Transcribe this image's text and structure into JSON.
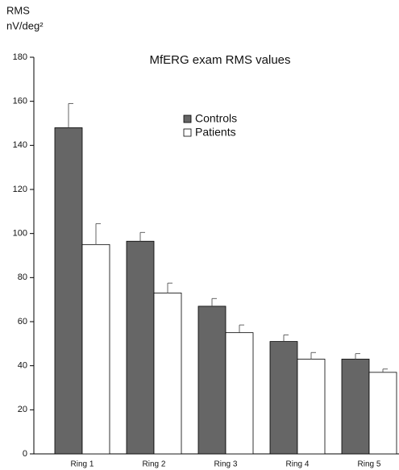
{
  "chart_data": {
    "type": "bar",
    "title": "MfERG exam RMS values",
    "y_label_line1": "RMS",
    "y_label_line2": "nV/deg²",
    "categories": [
      "Ring 1",
      "Ring 2",
      "Ring 3",
      "Ring 4",
      "Ring 5"
    ],
    "series": [
      {
        "name": "Controls",
        "color": "#666666",
        "values": [
          148,
          96.5,
          67,
          51,
          43
        ],
        "errors": [
          11,
          4,
          3.5,
          3,
          2.5
        ]
      },
      {
        "name": "Patients",
        "color": "#ffffff",
        "values": [
          95,
          73,
          55,
          43,
          37
        ],
        "errors": [
          9.5,
          4.5,
          3.5,
          3,
          1.5
        ]
      }
    ],
    "ylim": [
      0,
      180
    ],
    "yticks": [
      0,
      20,
      40,
      60,
      80,
      100,
      120,
      140,
      160,
      180
    ],
    "grid": false
  }
}
